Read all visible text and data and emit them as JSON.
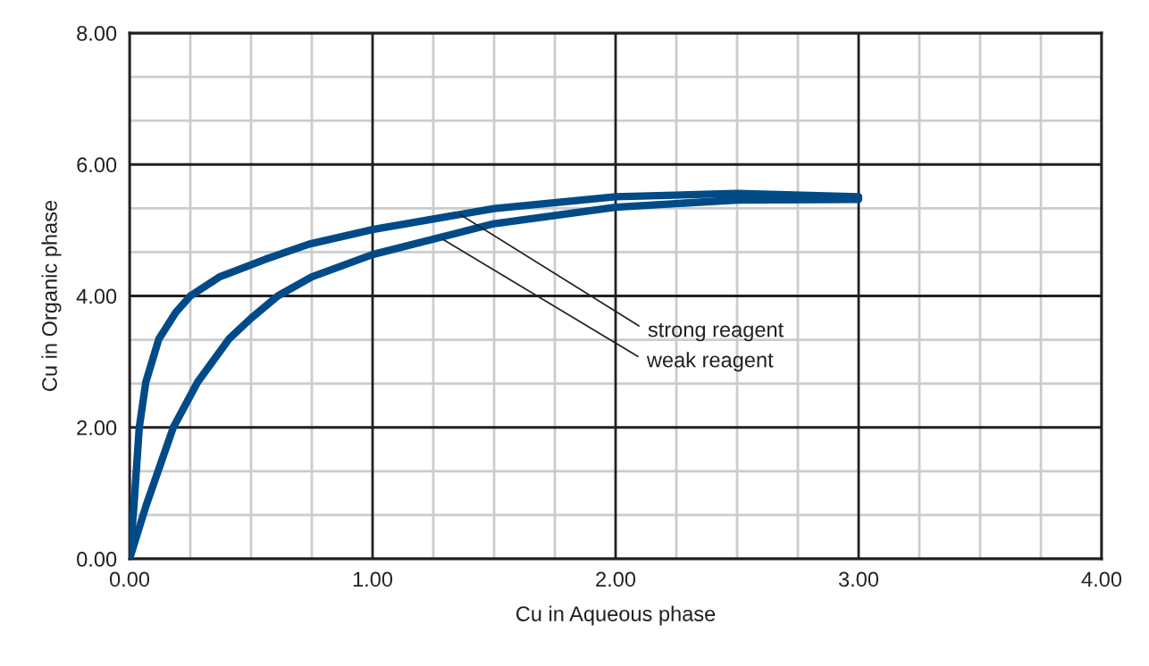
{
  "chart_data": {
    "type": "line",
    "xlabel": "Cu in Aqueous phase",
    "ylabel": "Cu in Organic phase",
    "xlim": [
      0,
      4
    ],
    "ylim": [
      0,
      8
    ],
    "xticks": [
      {
        "value": 0,
        "label": "0.00"
      },
      {
        "value": 1,
        "label": "1.00"
      },
      {
        "value": 2,
        "label": "2.00"
      },
      {
        "value": 3,
        "label": "3.00"
      },
      {
        "value": 4,
        "label": "4.00"
      }
    ],
    "yticks": [
      {
        "value": 0,
        "label": "0.00"
      },
      {
        "value": 2,
        "label": "2.00"
      },
      {
        "value": 4,
        "label": "4.00"
      },
      {
        "value": 6,
        "label": "6.00"
      },
      {
        "value": 8,
        "label": "8.00"
      }
    ],
    "grid": true,
    "marker": "none",
    "line_style": "solid",
    "series": [
      {
        "color": "#004b87",
        "x": [
          0,
          0.018,
          0.04,
          0.067,
          0.12,
          0.19,
          0.25,
          0.37,
          0.56,
          0.74,
          1.0,
          1.5,
          2.0,
          2.5,
          3.0
        ],
        "values": [
          0,
          0.81,
          2.0,
          2.69,
          3.34,
          3.75,
          4.0,
          4.29,
          4.56,
          4.79,
          5.01,
          5.33,
          5.51,
          5.56,
          5.51
        ]
      },
      {
        "color": "#004b87",
        "x": [
          0,
          0.068,
          0.18,
          0.28,
          0.41,
          0.5,
          0.61,
          0.75,
          1.0,
          1.5,
          2.0,
          2.5,
          3.0
        ],
        "values": [
          0,
          0.81,
          2.0,
          2.69,
          3.35,
          3.66,
          4.0,
          4.29,
          4.63,
          5.1,
          5.35,
          5.46,
          5.47
        ]
      }
    ],
    "annotations": [
      {
        "text": "strong reagent",
        "x": 1.36,
        "y": 5.24
      },
      {
        "text": "weak reagent",
        "x": 1.29,
        "y": 4.86
      }
    ]
  }
}
